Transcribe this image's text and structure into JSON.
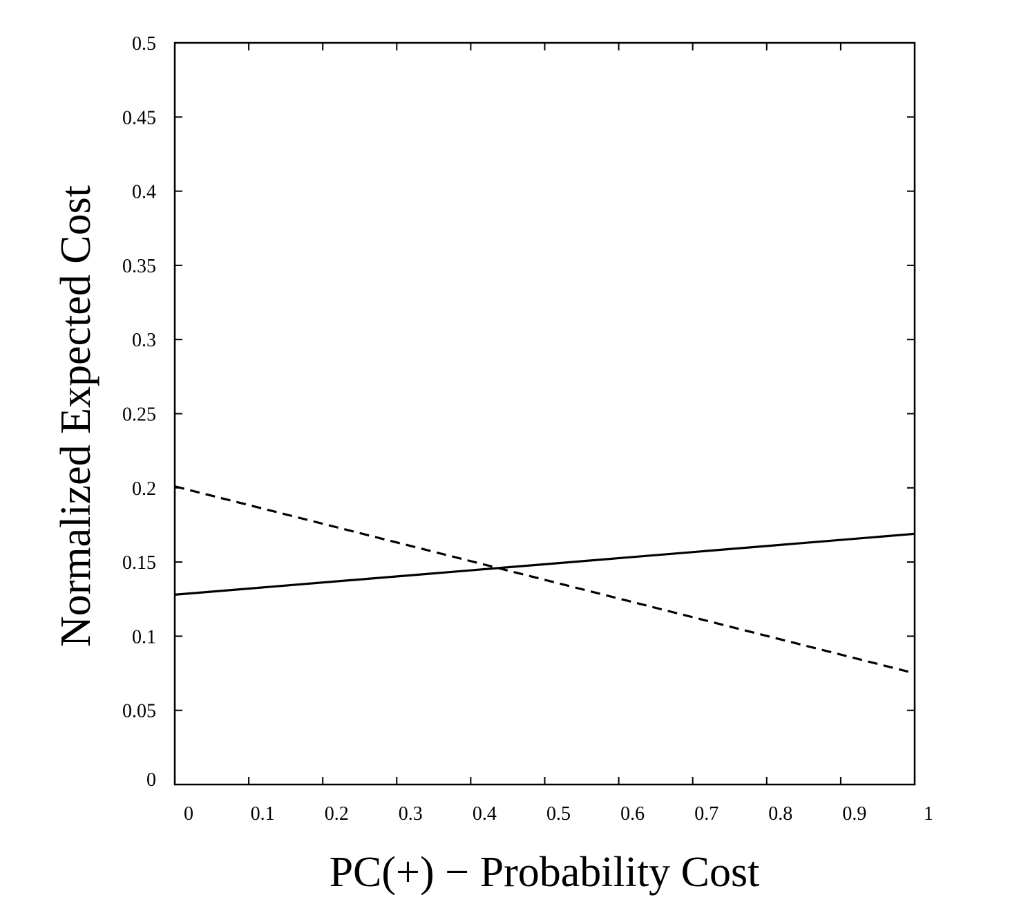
{
  "chart_data": {
    "type": "line",
    "title": "",
    "xlabel": "PC(+) − Probability Cost",
    "ylabel": "Normalized Expected Cost",
    "xlim": [
      0,
      1
    ],
    "ylim": [
      0,
      0.5
    ],
    "xticks": [
      "0",
      "0.1",
      "0.2",
      "0.3",
      "0.4",
      "0.5",
      "0.6",
      "0.7",
      "0.8",
      "0.9",
      "1"
    ],
    "yticks": [
      "0",
      "0.05",
      "0.1",
      "0.15",
      "0.2",
      "0.25",
      "0.3",
      "0.35",
      "0.4",
      "0.45",
      "0.5"
    ],
    "grid": false,
    "legend": "none",
    "series": [
      {
        "style": "solid",
        "color": "#000000",
        "x": [
          0,
          1
        ],
        "y": [
          0.128,
          0.169
        ]
      },
      {
        "style": "dashed",
        "color": "#000000",
        "x": [
          0,
          1
        ],
        "y": [
          0.201,
          0.075
        ]
      }
    ]
  }
}
